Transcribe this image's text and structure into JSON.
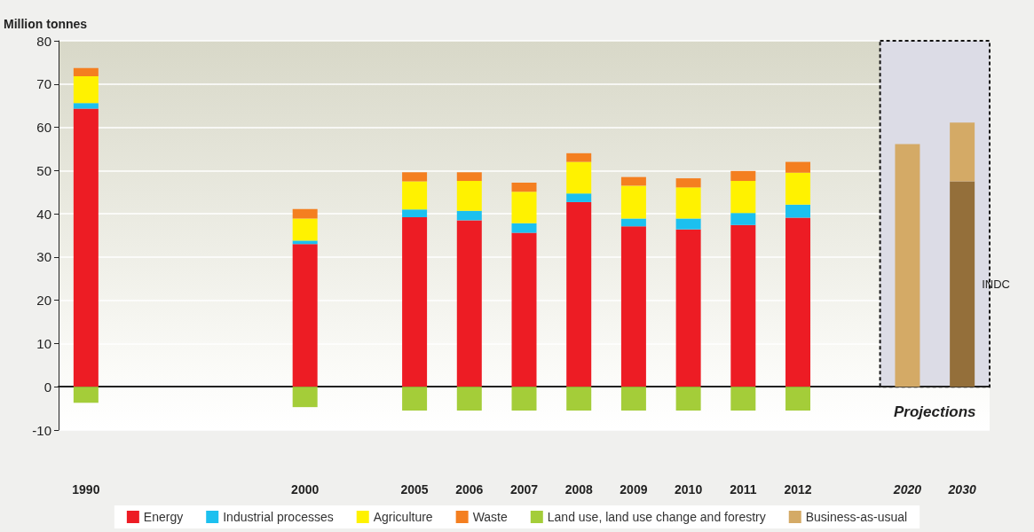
{
  "chart_data": {
    "type": "bar",
    "ylabel": "Million tonnes",
    "stacked": true,
    "categories": [
      "1990",
      null,
      null,
      null,
      "2000",
      null,
      "2005",
      "2006",
      "2007",
      "2008",
      "2009",
      "2010",
      "2011",
      "2012",
      null,
      "2020",
      "2030"
    ],
    "series": [
      {
        "name": "Energy",
        "color": "#ed1c24",
        "values": [
          64.3,
          null,
          null,
          null,
          33.0,
          null,
          39.2,
          38.5,
          35.6,
          42.7,
          37.1,
          36.4,
          37.4,
          39.1,
          null,
          null,
          null
        ]
      },
      {
        "name": "Industrial processes",
        "color": "#1cc0ef",
        "values": [
          1.3,
          null,
          null,
          null,
          0.8,
          null,
          1.8,
          2.2,
          2.2,
          2.0,
          1.8,
          2.5,
          2.8,
          3.0,
          null,
          null,
          null
        ]
      },
      {
        "name": "Agriculture",
        "color": "#fff200",
        "values": [
          6.2,
          null,
          null,
          null,
          5.1,
          null,
          6.5,
          6.9,
          7.3,
          7.3,
          7.6,
          7.2,
          7.4,
          7.4,
          null,
          null,
          null
        ]
      },
      {
        "name": "Waste",
        "color": "#f47f20",
        "values": [
          1.9,
          null,
          null,
          null,
          2.2,
          null,
          2.1,
          2.0,
          2.1,
          2.0,
          2.0,
          2.1,
          2.3,
          2.5,
          null,
          null,
          null
        ]
      },
      {
        "name": "Land use, land use change and forestry",
        "color": "#a4cd39",
        "values": [
          -3.7,
          null,
          null,
          null,
          -4.7,
          null,
          -5.5,
          -5.5,
          -5.5,
          -5.5,
          -5.5,
          -5.5,
          -5.5,
          -5.5,
          null,
          null,
          null
        ]
      },
      {
        "name": "INDC",
        "color": "#946f3a",
        "values": [
          null,
          null,
          null,
          null,
          null,
          null,
          null,
          null,
          null,
          null,
          null,
          null,
          null,
          null,
          null,
          null,
          47.5
        ]
      },
      {
        "name": "Business-as-usual",
        "color": "#d4aa66",
        "values": [
          null,
          null,
          null,
          null,
          null,
          null,
          null,
          null,
          null,
          null,
          null,
          null,
          null,
          null,
          null,
          56.1,
          13.6
        ]
      }
    ],
    "ylim": [
      -10,
      80
    ],
    "yticks": [
      -10,
      0,
      10,
      20,
      30,
      40,
      50,
      60,
      70,
      80
    ],
    "grid": "y",
    "legend": "bottom",
    "bands": [
      {
        "axis": "x",
        "from": "2020",
        "to": "2030",
        "label": "Projections",
        "color": "#dcdce6"
      }
    ]
  }
}
